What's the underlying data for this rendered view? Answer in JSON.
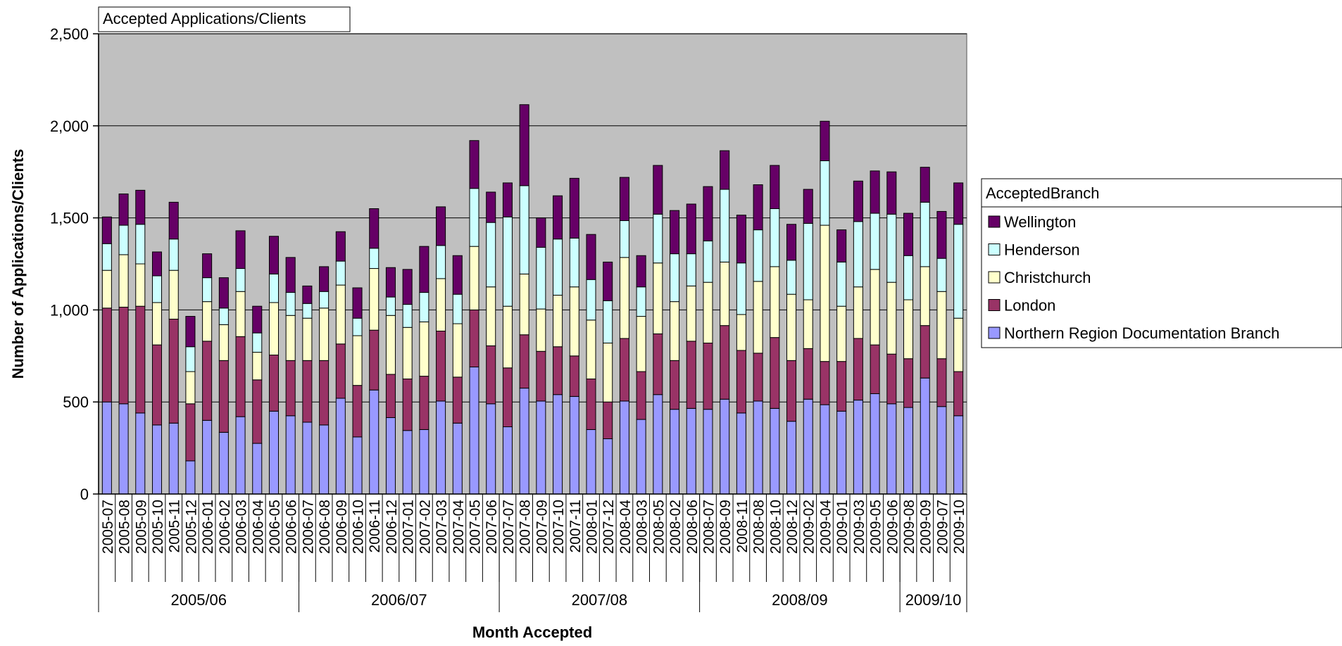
{
  "colors": {
    "plot_background": "#c0c0c0",
    "Northern Region Documentation Branch": "#9999ff",
    "London": "#993366",
    "Christchurch": "#ffffcc",
    "Henderson": "#ccffff",
    "Wellington": "#660066"
  },
  "chart_data": {
    "type": "bar",
    "stacked": true,
    "title": "Accepted Applications/Clients",
    "xlabel": "Month Accepted",
    "ylabel": "Number of Applications/Clients",
    "ylim": [
      0,
      2500
    ],
    "yticks": [
      "0",
      "500",
      "1,000",
      "1,500",
      "2,000",
      "2,500"
    ],
    "ytick_values": [
      0,
      500,
      1000,
      1500,
      2000,
      2500
    ],
    "grid": true,
    "legend_title": "AcceptedBranch",
    "legend_position": "right",
    "categories": [
      "2005-07",
      "2005-08",
      "2005-09",
      "2005-10",
      "2005-11",
      "2005-12",
      "2006-01",
      "2006-02",
      "2006-03",
      "2006-04",
      "2006-05",
      "2006-06",
      "2006-07",
      "2006-08",
      "2006-09",
      "2006-10",
      "2006-11",
      "2006-12",
      "2007-01",
      "2007-02",
      "2007-03",
      "2007-04",
      "2007-05",
      "2007-06",
      "2007-07",
      "2007-08",
      "2007-09",
      "2007-10",
      "2007-11",
      "2008-01",
      "2007-12",
      "2008-04",
      "2008-03",
      "2008-05",
      "2008-02",
      "2008-06",
      "2008-07",
      "2008-09",
      "2008-11",
      "2008-08",
      "2008-10",
      "2008-12",
      "2009-02",
      "2009-04",
      "2009-01",
      "2009-03",
      "2009-05",
      "2009-06",
      "2009-08",
      "2009-09",
      "2009-07",
      "2009-10"
    ],
    "groups": [
      {
        "label": "2005/06",
        "count": 12
      },
      {
        "label": "2006/07",
        "count": 12
      },
      {
        "label": "2007/08",
        "count": 12
      },
      {
        "label": "2008/09",
        "count": 12
      },
      {
        "label": "2009/10",
        "count": 4
      }
    ],
    "series": [
      {
        "name": "Northern Region Documentation Branch",
        "values": [
          500,
          490,
          440,
          375,
          385,
          180,
          400,
          335,
          420,
          275,
          450,
          425,
          390,
          375,
          520,
          310,
          565,
          415,
          345,
          350,
          505,
          385,
          690,
          490,
          365,
          575,
          505,
          540,
          530,
          350,
          300,
          505,
          405,
          540,
          460,
          465,
          460,
          515,
          440,
          505,
          465,
          395,
          515,
          485,
          450,
          510,
          545,
          490,
          470,
          630,
          475,
          425
        ]
      },
      {
        "name": "London",
        "values": [
          510,
          525,
          580,
          435,
          565,
          310,
          430,
          390,
          435,
          345,
          305,
          300,
          335,
          350,
          295,
          280,
          325,
          235,
          280,
          290,
          380,
          250,
          310,
          315,
          320,
          290,
          270,
          260,
          220,
          275,
          200,
          340,
          260,
          330,
          265,
          365,
          360,
          400,
          340,
          260,
          385,
          330,
          275,
          235,
          270,
          335,
          265,
          270,
          265,
          285,
          260,
          240
        ]
      },
      {
        "name": "Christchurch",
        "values": [
          205,
          285,
          230,
          230,
          265,
          175,
          215,
          195,
          245,
          150,
          285,
          245,
          230,
          285,
          320,
          270,
          335,
          320,
          280,
          295,
          285,
          290,
          345,
          320,
          335,
          330,
          230,
          280,
          375,
          320,
          320,
          440,
          300,
          385,
          320,
          300,
          330,
          345,
          195,
          390,
          385,
          360,
          265,
          740,
          300,
          280,
          410,
          390,
          320,
          320,
          365,
          290
        ]
      },
      {
        "name": "Henderson",
        "values": [
          145,
          160,
          215,
          145,
          170,
          135,
          130,
          90,
          125,
          105,
          155,
          125,
          80,
          90,
          130,
          95,
          110,
          100,
          125,
          160,
          180,
          160,
          315,
          350,
          485,
          480,
          335,
          305,
          265,
          220,
          230,
          200,
          160,
          265,
          260,
          175,
          225,
          395,
          280,
          280,
          315,
          185,
          415,
          350,
          240,
          355,
          305,
          370,
          240,
          350,
          180,
          510
        ]
      },
      {
        "name": "Wellington",
        "values": [
          145,
          170,
          185,
          130,
          200,
          165,
          130,
          165,
          205,
          145,
          205,
          190,
          95,
          135,
          160,
          165,
          215,
          160,
          190,
          250,
          210,
          210,
          260,
          165,
          185,
          440,
          160,
          235,
          325,
          245,
          210,
          235,
          170,
          265,
          235,
          270,
          295,
          210,
          260,
          245,
          235,
          195,
          185,
          215,
          175,
          220,
          230,
          230,
          230,
          190,
          255,
          225
        ]
      }
    ]
  }
}
